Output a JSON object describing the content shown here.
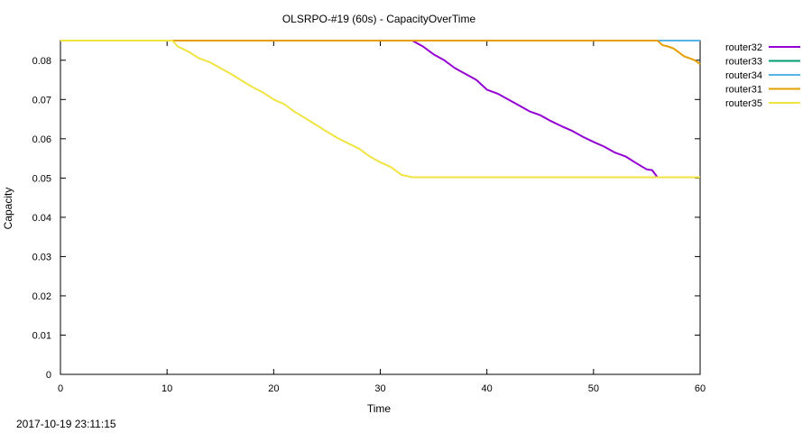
{
  "chart_data": {
    "type": "line",
    "title": "OLSRPO-#19 (60s) - CapacityOverTime",
    "xlabel": "Time",
    "ylabel": "Capacity",
    "xlim": [
      0,
      60
    ],
    "ylim": [
      0,
      0.085
    ],
    "x_ticks": [
      "0",
      "10",
      "20",
      "30",
      "40",
      "50",
      "60"
    ],
    "y_ticks": [
      "0",
      "0.01",
      "0.02",
      "0.03",
      "0.04",
      "0.05",
      "0.06",
      "0.07",
      "0.08"
    ],
    "grid": false,
    "legend_position": "outside-top-right",
    "series": [
      {
        "name": "router32",
        "color": "#9400d3",
        "points": [
          [
            0,
            0.085
          ],
          [
            33,
            0.085
          ],
          [
            34,
            0.0835
          ],
          [
            35,
            0.0815
          ],
          [
            36,
            0.08
          ],
          [
            37,
            0.078
          ],
          [
            38,
            0.0765
          ],
          [
            39,
            0.075
          ],
          [
            40,
            0.0725
          ],
          [
            41,
            0.0715
          ],
          [
            42,
            0.07
          ],
          [
            43,
            0.0685
          ],
          [
            44,
            0.067
          ],
          [
            45,
            0.066
          ],
          [
            46,
            0.0645
          ],
          [
            47,
            0.0632
          ],
          [
            48,
            0.062
          ],
          [
            49,
            0.0605
          ],
          [
            50,
            0.0592
          ],
          [
            51,
            0.058
          ],
          [
            52,
            0.0565
          ],
          [
            53,
            0.0555
          ],
          [
            54,
            0.0538
          ],
          [
            55,
            0.0522
          ],
          [
            55.5,
            0.052
          ],
          [
            56,
            0.0502
          ],
          [
            60,
            0.0502
          ]
        ]
      },
      {
        "name": "router33",
        "color": "#009e73",
        "points": [
          [
            0,
            0.085
          ],
          [
            60,
            0.085
          ]
        ]
      },
      {
        "name": "router34",
        "color": "#56b4e9",
        "points": [
          [
            0,
            0.085
          ],
          [
            60,
            0.085
          ]
        ]
      },
      {
        "name": "router31",
        "color": "#e69f00",
        "points": [
          [
            0,
            0.085
          ],
          [
            56,
            0.085
          ],
          [
            56.5,
            0.0838
          ],
          [
            57,
            0.0835
          ],
          [
            57.5,
            0.083
          ],
          [
            58,
            0.082
          ],
          [
            58.5,
            0.081
          ],
          [
            59,
            0.0805
          ],
          [
            59.5,
            0.08
          ],
          [
            60,
            0.079
          ]
        ]
      },
      {
        "name": "router35",
        "color": "#f0e442",
        "points": [
          [
            0,
            0.085
          ],
          [
            10.5,
            0.085
          ],
          [
            11,
            0.0835
          ],
          [
            12,
            0.0822
          ],
          [
            13,
            0.0805
          ],
          [
            14,
            0.0795
          ],
          [
            15,
            0.078
          ],
          [
            16,
            0.0765
          ],
          [
            17,
            0.0748
          ],
          [
            18,
            0.0732
          ],
          [
            19,
            0.0718
          ],
          [
            20,
            0.07
          ],
          [
            21,
            0.0688
          ],
          [
            22,
            0.0668
          ],
          [
            23,
            0.0652
          ],
          [
            24,
            0.0635
          ],
          [
            25,
            0.0618
          ],
          [
            26,
            0.0602
          ],
          [
            27,
            0.0588
          ],
          [
            28,
            0.0575
          ],
          [
            29,
            0.0555
          ],
          [
            30,
            0.054
          ],
          [
            31,
            0.0528
          ],
          [
            32,
            0.0508
          ],
          [
            33,
            0.0502
          ],
          [
            60,
            0.0502
          ]
        ]
      }
    ]
  },
  "timestamp": "2017-10-19 23:11:15"
}
